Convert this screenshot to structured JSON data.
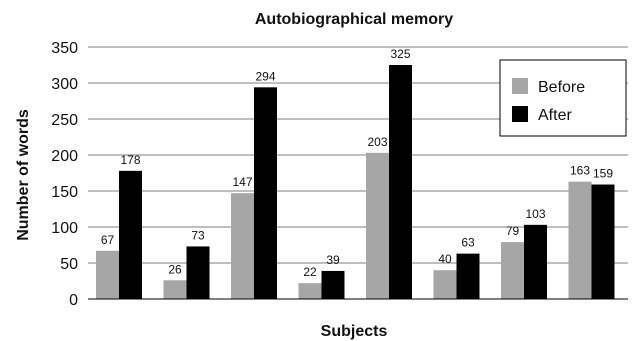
{
  "chart_data": {
    "type": "bar",
    "title": "Autobiographical memory",
    "xlabel": "Subjects",
    "ylabel": "Number of words",
    "ylim": [
      0,
      350
    ],
    "yticks": [
      0,
      50,
      100,
      150,
      200,
      250,
      300,
      350
    ],
    "categories": [
      "",
      "",
      "",
      "",
      "",
      "",
      "",
      ""
    ],
    "series": [
      {
        "name": "Before",
        "color": "#a6a6a6",
        "values": [
          67,
          26,
          147,
          22,
          203,
          40,
          79,
          163
        ]
      },
      {
        "name": "After",
        "color": "#000000",
        "values": [
          178,
          73,
          294,
          39,
          325,
          63,
          103,
          159
        ]
      }
    ],
    "grid": true,
    "legend_position": "top-right"
  }
}
